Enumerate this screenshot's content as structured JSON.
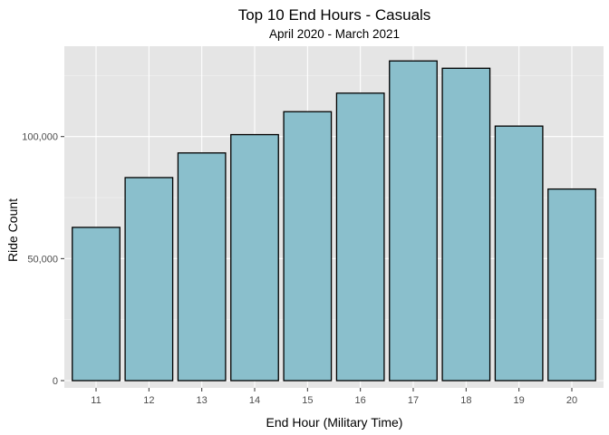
{
  "chart_data": {
    "type": "bar",
    "title": "Top 10 End Hours - Casuals",
    "subtitle": "April 2020 - March 2021",
    "xlabel": "End Hour (Military Time)",
    "ylabel": "Ride Count",
    "categories": [
      "11",
      "12",
      "13",
      "14",
      "15",
      "16",
      "17",
      "18",
      "19",
      "20"
    ],
    "values": [
      62800,
      83200,
      93300,
      100800,
      110200,
      117800,
      131000,
      128000,
      104300,
      78500
    ],
    "ylim": [
      0,
      140000
    ],
    "yticks": [
      0,
      50000,
      100000
    ],
    "ytick_labels": [
      "0",
      "50,000",
      "100,000"
    ],
    "grid": true,
    "colors": {
      "bar_fill": "#8abfcc",
      "bar_stroke": "#000000",
      "panel_background": "#e5e5e5",
      "grid_major": "#ffffff",
      "grid_minor": "#f2f2f2"
    }
  }
}
